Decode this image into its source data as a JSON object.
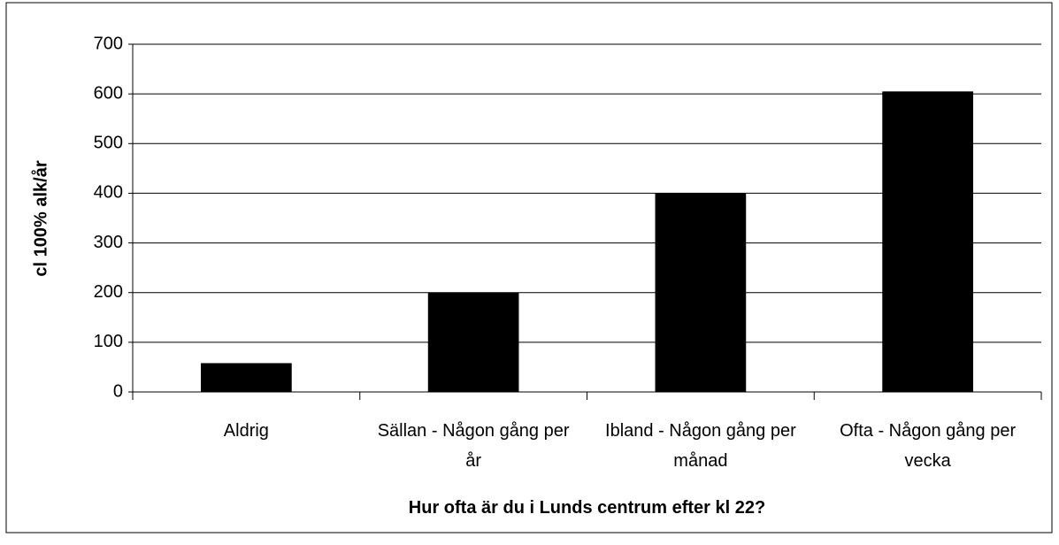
{
  "chart_data": {
    "type": "bar",
    "categories": [
      "Aldrig",
      "Sällan - Någon gång per år",
      "Ibland - Någon gång per månad",
      "Ofta - Någon gång per vecka"
    ],
    "values": [
      58,
      200,
      400,
      605
    ],
    "color": "#000000",
    "x_label": "Hur ofta är du i Lunds centrum efter kl 22?",
    "y_label": "cl 100% alk/år",
    "ylim": [
      0,
      700
    ],
    "yticks": [
      0,
      100,
      200,
      300,
      400,
      500,
      600,
      700
    ],
    "grid": true
  }
}
